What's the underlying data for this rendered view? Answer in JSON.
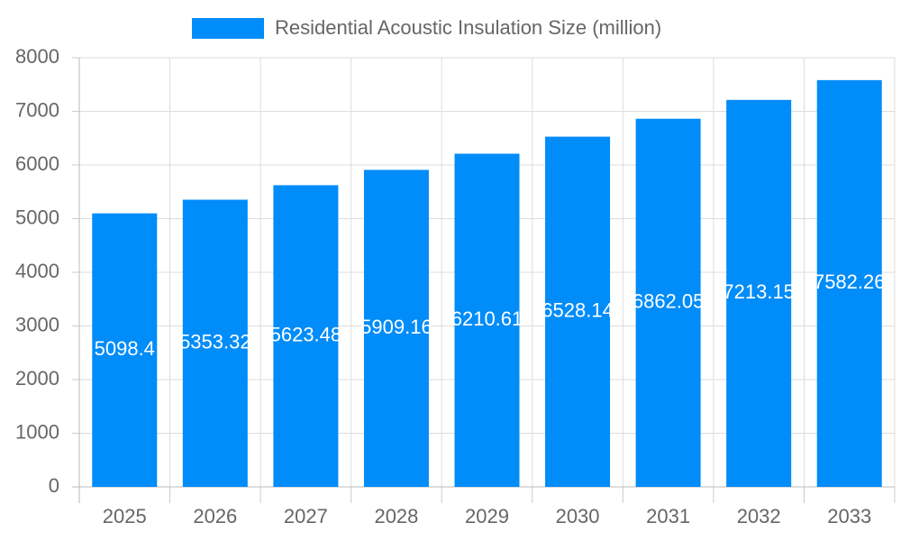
{
  "chart_data": {
    "type": "bar",
    "categories": [
      "2025",
      "2026",
      "2027",
      "2028",
      "2029",
      "2030",
      "2031",
      "2032",
      "2033"
    ],
    "series": [
      {
        "name": "Residential Acoustic Insulation Size (million)",
        "color": "#008cf9",
        "values": [
          5098.4,
          5353.32,
          5623.48,
          5909.16,
          6210.61,
          6528.14,
          6862.05,
          7213.15,
          7582.26
        ]
      }
    ],
    "ylim": [
      0,
      8000
    ],
    "yticks": [
      0,
      1000,
      2000,
      3000,
      4000,
      5000,
      6000,
      7000,
      8000
    ],
    "grid": true,
    "legend": "top"
  }
}
